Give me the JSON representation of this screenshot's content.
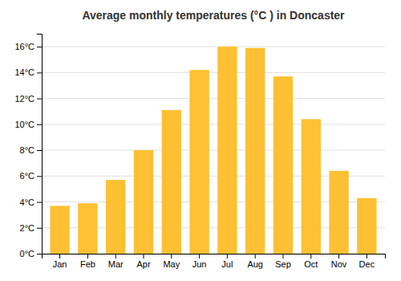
{
  "chart_data": {
    "type": "bar",
    "title": "Average monthly temperatures (°C ) in Doncaster",
    "categories": [
      "Jan",
      "Feb",
      "Mar",
      "Apr",
      "May",
      "Jun",
      "Jul",
      "Aug",
      "Sep",
      "Oct",
      "Nov",
      "Dec"
    ],
    "values": [
      3.7,
      3.9,
      5.7,
      8.0,
      11.1,
      14.2,
      16.0,
      15.9,
      13.7,
      10.4,
      6.4,
      4.3
    ],
    "color": "#FFC033",
    "ylim": [
      0,
      17
    ],
    "yticks": [
      {
        "value": 0,
        "label": "0°C"
      },
      {
        "value": 2,
        "label": "2°C"
      },
      {
        "value": 4,
        "label": "4°C"
      },
      {
        "value": 6,
        "label": "6°C"
      },
      {
        "value": 8,
        "label": "8°C"
      },
      {
        "value": 10,
        "label": "10°C"
      },
      {
        "value": 12,
        "label": "12°C"
      },
      {
        "value": 14,
        "label": "14°C"
      },
      {
        "value": 16,
        "label": "16°C"
      }
    ],
    "grid": true
  }
}
